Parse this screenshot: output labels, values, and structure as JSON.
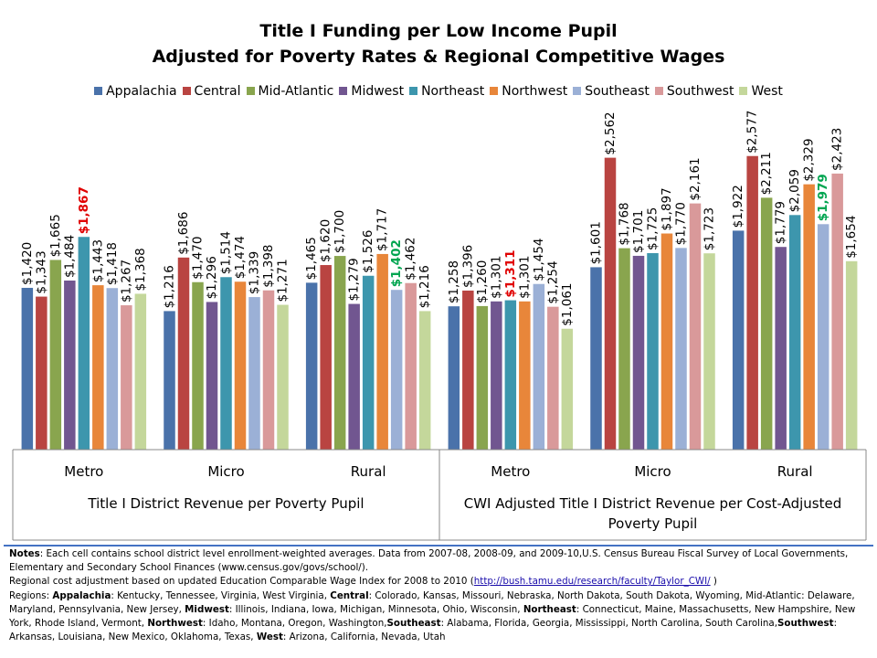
{
  "chart_data": {
    "type": "bar",
    "title_lines": [
      "Title I Funding per Low Income Pupil",
      "Adjusted for Poverty Rates & Regional Competitive Wages"
    ],
    "series": [
      {
        "name": "Appalachia",
        "color": "#4a72aa",
        "values": [
          1420,
          1216,
          1465,
          1258,
          1601,
          1922
        ],
        "labels": [
          "$1,420",
          "$1,216",
          "$1,465",
          "$1,258",
          "$1,601",
          "$1,922"
        ]
      },
      {
        "name": "Central",
        "color": "#b94441",
        "values": [
          1343,
          1686,
          1620,
          1396,
          2562,
          2577
        ],
        "labels": [
          "$1,343",
          "$1,686",
          "$1,620",
          "$1,396",
          "$2,562",
          "$2,577"
        ]
      },
      {
        "name": "Mid-Atlantic",
        "color": "#89a54e",
        "values": [
          1665,
          1470,
          1700,
          1260,
          1768,
          2211
        ],
        "labels": [
          "$1,665",
          "$1,470",
          "$1,700",
          "$1,260",
          "$1,768",
          "$2,211"
        ]
      },
      {
        "name": "Midwest",
        "color": "#715690",
        "values": [
          1484,
          1296,
          1279,
          1301,
          1701,
          1779
        ],
        "labels": [
          "$1,484",
          "$1,296",
          "$1,279",
          "$1,301",
          "$1,701",
          "$1,779"
        ]
      },
      {
        "name": "Northeast",
        "color": "#3d96ad",
        "values": [
          1867,
          1514,
          1526,
          1311,
          1725,
          2059
        ],
        "labels": [
          "$1,867",
          "$1,514",
          "$1,526",
          "$1,311",
          "$1,725",
          "$2,059"
        ]
      },
      {
        "name": "Northwest",
        "color": "#e8863a",
        "values": [
          1443,
          1474,
          1717,
          1301,
          1897,
          2329
        ],
        "labels": [
          "$1,443",
          "$1,474",
          "$1,717",
          "$1,301",
          "$1,897",
          "$2,329"
        ]
      },
      {
        "name": "Southeast",
        "color": "#9bb0d6",
        "values": [
          1418,
          1339,
          1402,
          1454,
          1770,
          1979
        ],
        "labels": [
          "$1,418",
          "$1,339",
          "$1,402",
          "$1,454",
          "$1,770",
          "$1,979"
        ]
      },
      {
        "name": "Southwest",
        "color": "#d9999a",
        "values": [
          1267,
          1398,
          1462,
          1254,
          2161,
          2423
        ],
        "labels": [
          "$1,267",
          "$1,398",
          "$1,462",
          "$1,254",
          "$2,161",
          "$2,423"
        ]
      },
      {
        "name": "West",
        "color": "#c4d79b",
        "values": [
          1368,
          1271,
          1216,
          1061,
          1723,
          1654
        ],
        "labels": [
          "$1,368",
          "$1,271",
          "$1,216",
          "$1,061",
          "$1,723",
          "$1,654"
        ]
      }
    ],
    "categories": [
      "Metro",
      "Micro",
      "Rural",
      "Metro",
      "Micro",
      "Rural"
    ],
    "groups": [
      {
        "label": "Title I District Revenue per Poverty Pupil",
        "categories": [
          0,
          1,
          2
        ]
      },
      {
        "label": "CWI Adjusted Title I District Revenue per Cost-Adjusted Poverty Pupil",
        "categories": [
          3,
          4,
          5
        ]
      }
    ],
    "highlights": [
      {
        "series": 4,
        "category": 0,
        "color": "#e00000"
      },
      {
        "series": 6,
        "category": 2,
        "color": "#00a550"
      },
      {
        "series": 4,
        "category": 3,
        "color": "#e00000"
      },
      {
        "series": 6,
        "category": 5,
        "color": "#00a550"
      }
    ],
    "ylim": [
      0,
      3000
    ],
    "xlabel": "",
    "ylabel": "",
    "legend_position": "top",
    "grid": false
  },
  "notes": {
    "notes_label": "Notes",
    "notes_text": ": Each cell contains school district level enrollment-weighted averages. Data from 2007-08, 2008-09, and 2009-10,U.S. Census Bureau Fiscal Survey of Local Governments,  Elementary and Secondary School Finances (www.census.gov/govs/school/).",
    "cwi_text": "Regional cost adjustment based on updated Education Comparable Wage Index for 2008 to  2010 (",
    "cwi_link": "http://bush.tamu.edu/research/faculty/Taylor_CWI/",
    "cwi_close": " )",
    "regions_label": "Regions: ",
    "regions": [
      {
        "name": "Appalachia",
        "states": ":  Kentucky,  Tennessee, Virginia, West Virginia, "
      },
      {
        "name": "Central",
        "states": ": Colorado, Kansas, Missouri, Nebraska, North Dakota, South Dakota, Wyoming,  Mid-Atlantic: Delaware, Maryland, Pennsylvania, New Jersey, "
      },
      {
        "name": "Midwest",
        "states": ":  Illinois, Indiana, Iowa, Michigan, Minnesota, Ohio, Wisconsin, "
      },
      {
        "name": "Northeast",
        "states": ": Connecticut, Maine, Massachusetts, New Hampshire, New York, Rhode Island, Vermont, "
      },
      {
        "name": "Northwest",
        "states": ": Idaho, Montana, Oregon,  Washington,"
      },
      {
        "name": "Southeast",
        "states": ": Alabama, Florida, Georgia, Mississippi, North Carolina, South Carolina,"
      },
      {
        "name": "Southwest",
        "states": ": Arkansas, Louisiana, New Mexico, Oklahoma, Texas, "
      },
      {
        "name": "West",
        "states": ": Arizona, California, Nevada, Utah"
      }
    ]
  }
}
